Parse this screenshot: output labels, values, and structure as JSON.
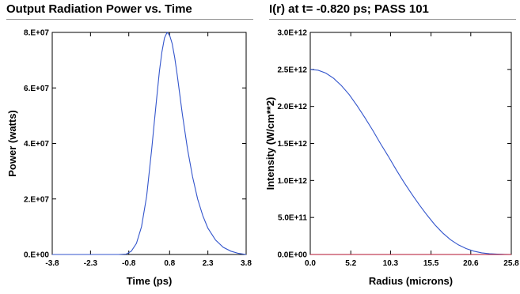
{
  "chart_data": [
    {
      "type": "line",
      "title": "Output Radiation Power vs. Time",
      "xlabel": "Time (ps)",
      "ylabel": "Power (watts)",
      "xlim": [
        -3.8,
        3.8
      ],
      "ylim": [
        0,
        80000000
      ],
      "x_ticks": [
        -3.8,
        -2.3,
        -0.8,
        0.8,
        2.3,
        3.8
      ],
      "x_tick_labels": [
        "-3.8",
        "-2.3",
        "-0.8",
        "0.8",
        "2.3",
        "3.8"
      ],
      "y_ticks": [
        0,
        20000000,
        40000000,
        60000000,
        80000000
      ],
      "y_tick_labels": [
        "0.E+00",
        "2.E+07",
        "4.E+07",
        "6.E+07",
        "8.E+07"
      ],
      "grid": false,
      "series": [
        {
          "color": "#3355cc",
          "x": [
            -3.8,
            -1.2,
            -0.9,
            -0.7,
            -0.5,
            -0.3,
            -0.1,
            0.1,
            0.2,
            0.3,
            0.4,
            0.5,
            0.6,
            0.7,
            0.8,
            0.9,
            1.0,
            1.1,
            1.2,
            1.3,
            1.5,
            1.7,
            1.9,
            2.1,
            2.3,
            2.6,
            2.9,
            3.2,
            3.5,
            3.8
          ],
          "values": [
            0,
            0,
            150000,
            1200000,
            4000000,
            10000000,
            21000000,
            38000000,
            47500000,
            57000000,
            66000000,
            73000000,
            78000000,
            80000000,
            79000000,
            76000000,
            71000000,
            64500000,
            57500000,
            50500000,
            38000000,
            28000000,
            20000000,
            14000000,
            9500000,
            5200000,
            2600000,
            1200000,
            400000,
            0
          ]
        }
      ]
    },
    {
      "type": "line",
      "title": "I(r) at t= -0.820 ps; PASS 101",
      "xlabel": "Radius (microns)",
      "ylabel": "Intensity (W/cm**2)",
      "xlim": [
        0,
        25.8
      ],
      "ylim": [
        0,
        3000000000000
      ],
      "x_ticks": [
        0,
        5.2,
        10.3,
        15.5,
        20.6,
        25.8
      ],
      "x_tick_labels": [
        "0.0",
        "5.2",
        "10.3",
        "15.5",
        "20.6",
        "25.8"
      ],
      "y_ticks": [
        0,
        500000000000,
        1000000000000,
        1500000000000,
        2000000000000,
        2500000000000,
        3000000000000
      ],
      "y_tick_labels": [
        "0.0E+00",
        "5.0E+11",
        "1.0E+12",
        "1.5E+12",
        "2.0E+12",
        "2.5E+12",
        "3.0E+12"
      ],
      "grid": false,
      "series": [
        {
          "color": "#3355cc",
          "x": [
            0,
            1,
            2,
            3,
            4,
            5,
            6,
            7,
            8,
            9,
            10,
            11,
            12,
            13,
            14,
            15,
            16,
            17,
            18,
            19,
            20,
            21,
            22,
            23,
            24,
            25,
            25.8
          ],
          "values": [
            2500000000000,
            2490000000000,
            2450000000000,
            2380000000000,
            2280000000000,
            2160000000000,
            2010000000000,
            1850000000000,
            1680000000000,
            1500000000000,
            1330000000000,
            1150000000000,
            980000000000,
            820000000000,
            670000000000,
            530000000000,
            400000000000,
            290000000000,
            200000000000,
            130000000000,
            80000000000,
            45000000000,
            22000000000,
            10000000000,
            4000000000,
            1000000000,
            0
          ]
        },
        {
          "color": "#b3122e",
          "x": [
            0,
            25.8
          ],
          "values": [
            0,
            0
          ]
        }
      ]
    }
  ]
}
